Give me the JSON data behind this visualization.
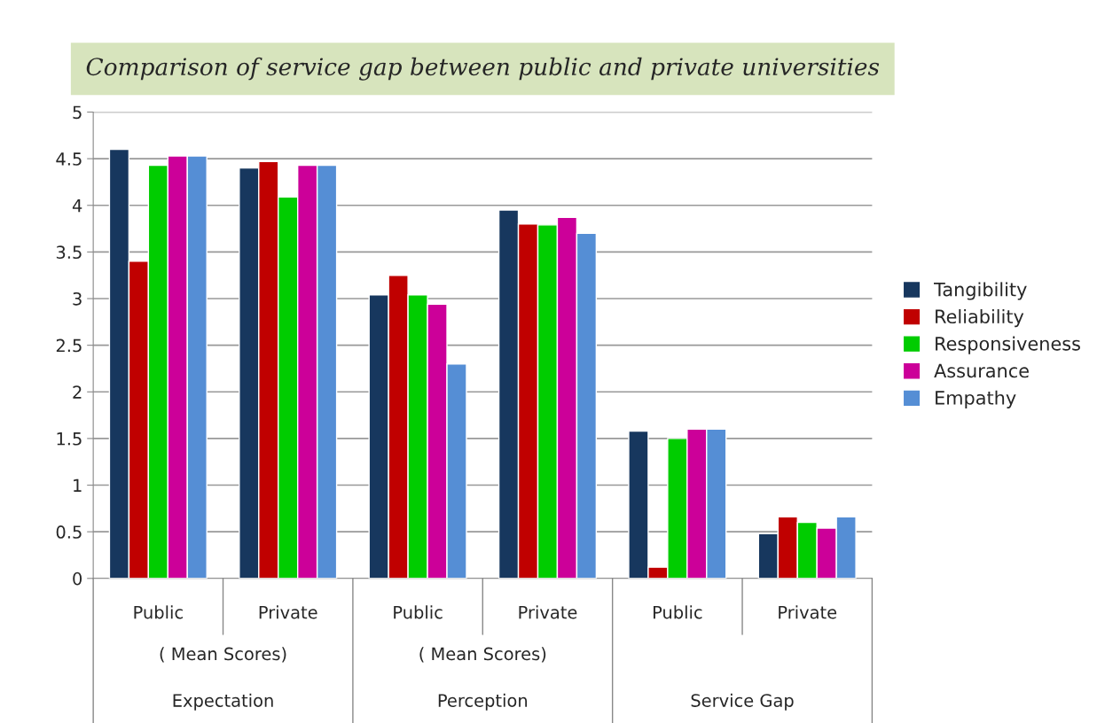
{
  "chart_data": {
    "type": "bar",
    "title": "Comparison of service gap between public and private universities",
    "categories": [
      "Public",
      "Private",
      "Public",
      "Private",
      "Public",
      "Private"
    ],
    "series": [
      {
        "name": "Tangibility",
        "color": "#17375e",
        "values": [
          4.6,
          4.4,
          3.04,
          3.95,
          1.58,
          0.48
        ]
      },
      {
        "name": "Reliability",
        "color": "#c00000",
        "values": [
          3.4,
          4.47,
          3.25,
          3.8,
          0.12,
          0.66
        ]
      },
      {
        "name": "Responsiveness",
        "color": "#00cc00",
        "values": [
          4.43,
          4.09,
          3.04,
          3.79,
          1.5,
          0.6
        ]
      },
      {
        "name": "Assurance",
        "color": "#cc0099",
        "values": [
          4.53,
          4.43,
          2.94,
          3.87,
          1.6,
          0.54
        ]
      },
      {
        "name": "Empathy",
        "color": "#558ed5",
        "values": [
          4.53,
          4.43,
          2.3,
          3.7,
          1.6,
          0.66
        ]
      }
    ],
    "annotations": [
      "( Mean Scores)",
      "( Mean Scores)",
      "Expectation",
      "Perception",
      "Service Gap"
    ],
    "ylim": [
      0,
      5
    ],
    "yticks": [
      0,
      0.5,
      1,
      1.5,
      2,
      2.5,
      3,
      3.5,
      4,
      4.5,
      5
    ],
    "grid": "y",
    "legend": "right"
  }
}
